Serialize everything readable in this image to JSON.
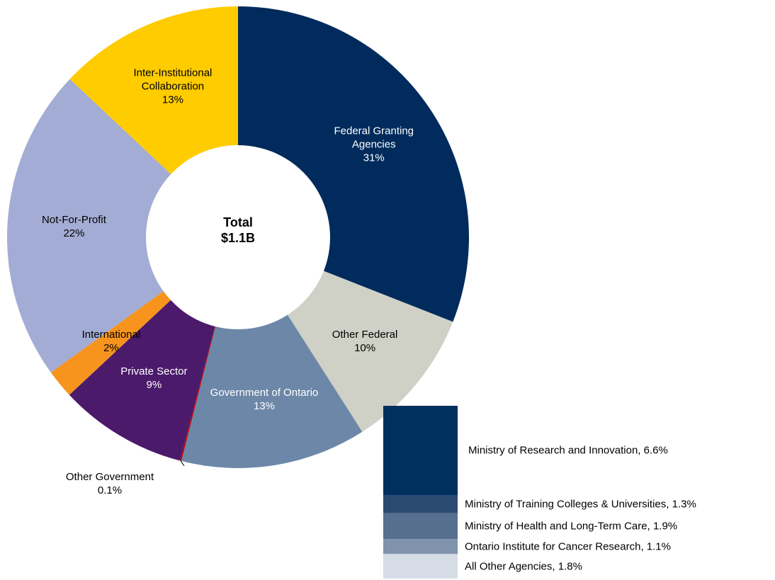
{
  "chart_data": [
    {
      "type": "donut",
      "center_title": "Total",
      "center_text": "$1.1B",
      "categories": [
        "Federal Granting Agencies",
        "Other Federal",
        "Government of Ontario",
        "Other Government",
        "Private Sector",
        "International",
        "Not-For-Profit",
        "Inter-Institutional Collaboration"
      ],
      "values": [
        31,
        10,
        13,
        0.1,
        9,
        2,
        22,
        13
      ],
      "value_labels": [
        "31%",
        "10%",
        "13%",
        "0.1%",
        "9%",
        "2%",
        "22%",
        "13%"
      ],
      "colors": [
        "#002b5c",
        "#cfd1c6",
        "#6d87a8",
        "#c00000",
        "#4b1a6b",
        "#f7941d",
        "#a3acd4",
        "#ffcc00"
      ]
    },
    {
      "type": "stacked_bar",
      "values": [
        6.6,
        1.3,
        1.9,
        1.1,
        1.8
      ],
      "value_labels": [
        "Ministry of Research and Innovation, 6.6%",
        "Ministry of Training Colleges & Universities, 1.3%",
        "Ministry of Health and Long-Term Care, 1.9%",
        "Ontario Institute for Cancer Research, 1.1%",
        "All Other Agencies, 1.8%"
      ],
      "colors": [
        "#00305e",
        "#2b4a72",
        "#566f8f",
        "#7f93ad",
        "#d5dce5"
      ]
    }
  ]
}
